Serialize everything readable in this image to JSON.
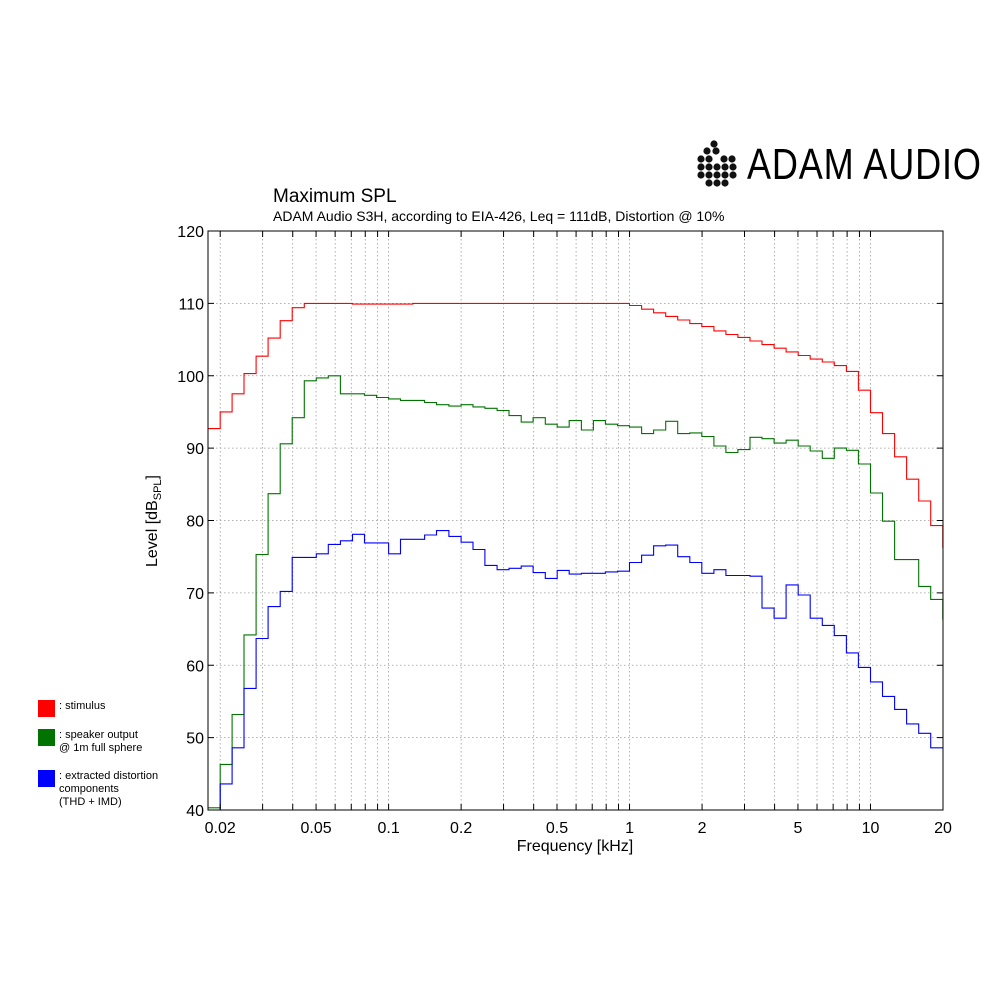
{
  "brand": {
    "name": "ADAM AUDIO"
  },
  "chart_data": {
    "type": "line",
    "title": "Maximum SPL",
    "subtitle": "ADAM Audio S3H, according to EIA-426, Leq = 111dB, Distortion @ 10%",
    "xlabel": "Frequency [kHz]",
    "ylabel_main": "Level [dB",
    "ylabel_sub": "SPL",
    "ylabel_end": "]",
    "xscale": "log",
    "xlim": [
      0.0178,
      20
    ],
    "ylim": [
      40,
      120
    ],
    "grid": true,
    "xticks": [
      {
        "v": 0.02,
        "label": "0.02"
      },
      {
        "v": 0.05,
        "label": "0.05"
      },
      {
        "v": 0.1,
        "label": "0.1"
      },
      {
        "v": 0.2,
        "label": "0.2"
      },
      {
        "v": 0.5,
        "label": "0.5"
      },
      {
        "v": 1,
        "label": "1"
      },
      {
        "v": 2,
        "label": "2"
      },
      {
        "v": 5,
        "label": "5"
      },
      {
        "v": 10,
        "label": "10"
      },
      {
        "v": 20,
        "label": "20"
      }
    ],
    "yticks": [
      {
        "v": 40,
        "label": "40"
      },
      {
        "v": 50,
        "label": "50"
      },
      {
        "v": 60,
        "label": "60"
      },
      {
        "v": 70,
        "label": "70"
      },
      {
        "v": 80,
        "label": "80"
      },
      {
        "v": 90,
        "label": "90"
      },
      {
        "v": 100,
        "label": "100"
      },
      {
        "v": 110,
        "label": "110"
      },
      {
        "v": 120,
        "label": "120"
      }
    ],
    "minor_xgrid": [
      0.03,
      0.04,
      0.06,
      0.07,
      0.08,
      0.09,
      0.3,
      0.4,
      0.6,
      0.7,
      0.8,
      0.9,
      3,
      4,
      6,
      7,
      8,
      9
    ],
    "legend_placement": "left, outside plot",
    "frequency_bands_hz": [
      17.8,
      20,
      22.4,
      25.1,
      28.2,
      31.6,
      35.5,
      39.8,
      44.7,
      50.1,
      56.2,
      63.1,
      70.8,
      79.4,
      89.1,
      100,
      112,
      126,
      141,
      158,
      178,
      200,
      224,
      251,
      282,
      316,
      355,
      398,
      447,
      501,
      562,
      631,
      708,
      794,
      891,
      1000,
      1122,
      1259,
      1413,
      1585,
      1778,
      1995,
      2239,
      2512,
      2818,
      3162,
      3548,
      3981,
      4467,
      5012,
      5623,
      6310,
      7079,
      7943,
      8913,
      10000,
      11220,
      12589,
      14125,
      15849,
      17783,
      19953
    ],
    "series": [
      {
        "name": "stimulus",
        "color": "#ff0000",
        "values": [
          92.7,
          95.0,
          97.5,
          100.3,
          102.7,
          105.2,
          107.6,
          109.4,
          110.0,
          110.0,
          110.0,
          110.0,
          109.9,
          109.9,
          109.9,
          109.9,
          109.9,
          110.0,
          110.0,
          110.0,
          110.0,
          110.0,
          110.0,
          110.0,
          110.0,
          110.0,
          110.0,
          110.0,
          110.0,
          110.0,
          110.0,
          110.0,
          110.0,
          110.0,
          110.0,
          109.7,
          109.2,
          108.7,
          108.2,
          107.7,
          107.2,
          106.8,
          106.2,
          105.7,
          105.3,
          104.8,
          104.3,
          103.8,
          103.3,
          102.8,
          102.3,
          101.9,
          101.4,
          100.6,
          98.0,
          94.9,
          92.0,
          88.8,
          85.7,
          82.7,
          79.3,
          76.3
        ]
      },
      {
        "name": "speaker output\n@ 1m full sphere",
        "color": "#007300",
        "values": [
          40.3,
          46.3,
          53.2,
          64.2,
          75.3,
          83.7,
          90.6,
          94.2,
          99.3,
          99.7,
          100.0,
          97.5,
          97.5,
          97.3,
          97.0,
          96.8,
          96.6,
          96.6,
          96.3,
          96.0,
          95.8,
          96.0,
          95.7,
          95.5,
          95.2,
          94.5,
          93.6,
          94.2,
          93.3,
          92.9,
          93.8,
          92.5,
          93.8,
          93.3,
          93.1,
          92.9,
          92.0,
          92.5,
          93.7,
          92.0,
          92.1,
          91.6,
          90.3,
          89.4,
          89.8,
          91.5,
          91.3,
          90.7,
          91.1,
          90.3,
          89.6,
          88.6,
          90.0,
          89.7,
          87.8,
          83.8,
          79.9,
          74.6,
          74.6,
          70.9,
          69.1,
          66.4
        ]
      },
      {
        "name": "extracted distortion\ncomponents\n(THD + IMD)",
        "color": "#0000ff",
        "values": [
          40.0,
          43.6,
          48.6,
          56.8,
          63.7,
          68.1,
          70.2,
          74.9,
          74.9,
          75.4,
          76.7,
          77.2,
          78.1,
          76.9,
          76.9,
          75.4,
          77.4,
          77.4,
          78.0,
          78.6,
          77.8,
          77.0,
          76.0,
          73.8,
          73.2,
          73.4,
          73.7,
          72.8,
          72.0,
          73.1,
          72.6,
          72.7,
          72.7,
          72.9,
          73.0,
          74.2,
          75.2,
          76.5,
          76.6,
          75.0,
          74.2,
          72.7,
          73.2,
          72.4,
          72.4,
          72.3,
          67.9,
          66.5,
          71.1,
          69.7,
          66.5,
          65.5,
          64.1,
          61.7,
          59.7,
          57.7,
          55.7,
          53.9,
          51.9,
          50.6,
          48.6,
          48.6
        ]
      }
    ]
  }
}
